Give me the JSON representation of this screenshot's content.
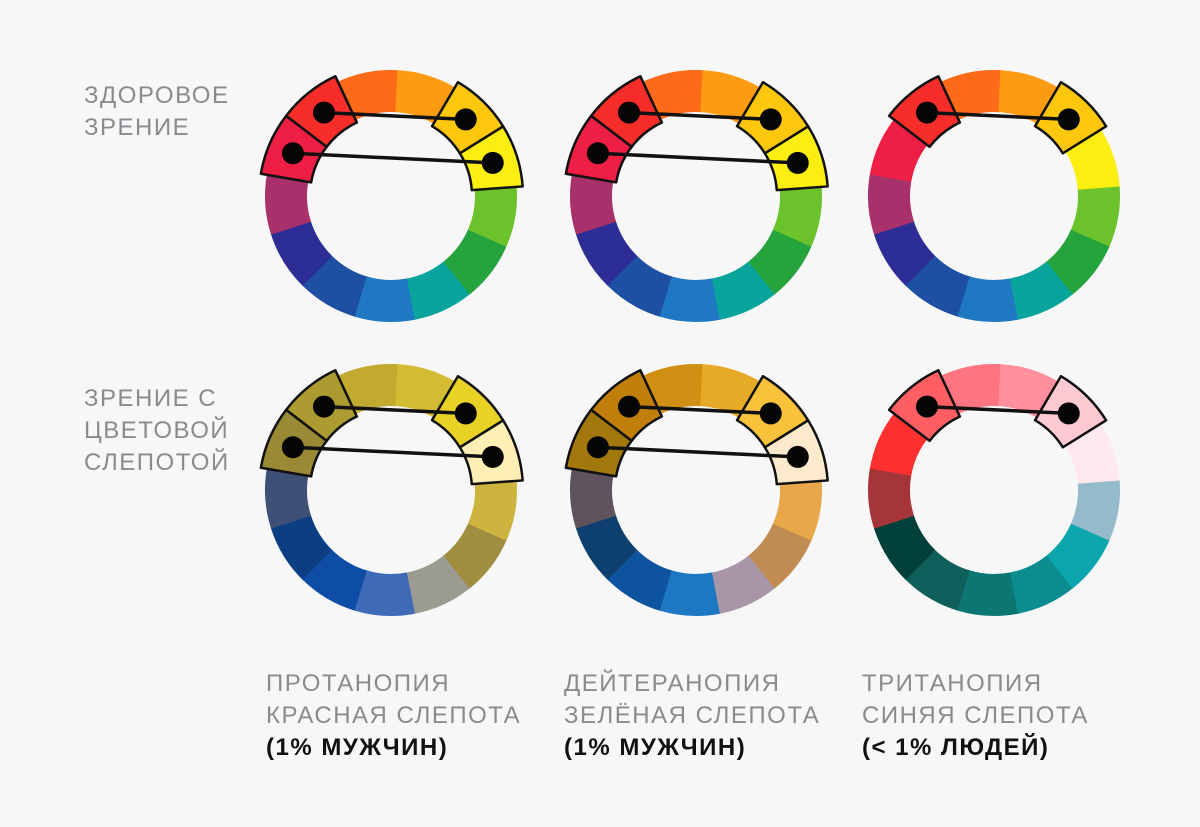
{
  "row_labels": {
    "healthy": [
      "ЗДОРОВОЕ",
      "ЗРЕНИЕ"
    ],
    "colorblind": [
      "ЗРЕНИЕ С",
      "ЦВЕТОВОЙ",
      "СЛЕПОТОЙ"
    ]
  },
  "columns": [
    {
      "line1": "ПРОТАНОПИЯ",
      "line2": "КРАСНАЯ СЛЕПОТА",
      "stat": "(1% МУЖЧИН)"
    },
    {
      "line1": "ДЕЙТЕРАНОПИЯ",
      "line2": "ЗЕЛЁНАЯ СЛЕПОТА",
      "stat": "(1% МУЖЧИН)"
    },
    {
      "line1": "ТРИТАНОПИЯ",
      "line2": "СИНЯЯ СЛЕПОТА",
      "stat": "(< 1% ЛЮДЕЙ)"
    }
  ],
  "wheels": {
    "healthy": [
      "#fbee10",
      "#fdc70e",
      "#fd9b12",
      "#fd6a1a",
      "#f72d2a",
      "#ee1e44",
      "#a8316c",
      "#2d2d96",
      "#1d4fa3",
      "#1e78c2",
      "#09a49c",
      "#25a33c",
      "#6cc22b"
    ],
    "protanopia": [
      "#ffefb4",
      "#e9d226",
      "#d3bb34",
      "#c1aa2f",
      "#ac9b30",
      "#9a8a35",
      "#3e5075",
      "#0c3e83",
      "#0e4da6",
      "#3f6ab8",
      "#9b9b92",
      "#a08d3f",
      "#cdb43f"
    ],
    "deuteranopia": [
      "#fde9cc",
      "#f9c23b",
      "#e6aa26",
      "#d18f14",
      "#c07f0a",
      "#a2780d",
      "#5e525c",
      "#0d3f6f",
      "#0e53a0",
      "#1c78c2",
      "#a896a8",
      "#c08c52",
      "#e8a849"
    ],
    "tritanopia": [
      "#ffe8ee",
      "#ffc9d2",
      "#ff8f9c",
      "#ff7481",
      "#ff5f63",
      "#ff3030",
      "#a6353a",
      "#00403b",
      "#0f5f5c",
      "#0c7772",
      "#0b8c8f",
      "#0aa5ad",
      "#94bacb"
    ]
  },
  "highlights": {
    "protanopia": [
      0,
      1,
      4,
      5
    ],
    "deuteranopia": [
      0,
      1,
      4,
      5
    ],
    "tritanopia": [
      1,
      4
    ]
  }
}
